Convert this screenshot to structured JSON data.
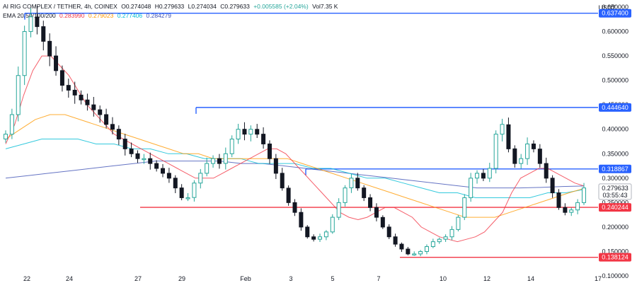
{
  "header": {
    "pair": "AI RIG COMPLEX / TETHER, 4h, COINEX",
    "open": "O0.274048",
    "high": "H0.279633",
    "low": "L0.274034",
    "close": "C0.279633",
    "change": "+0.005585 (+2.04%)",
    "volume": "Vol7.35 K",
    "ema_label": "EMA 20/50/100/200",
    "ema20": "0.283990",
    "ema50": "0.279023",
    "ema100": "0.277406",
    "ema200": "0.284279"
  },
  "colors": {
    "up": "#26a69a",
    "down": "#131722",
    "ema20": "#f23645",
    "ema50": "#ff9800",
    "ema100": "#00bcd4",
    "ema200": "#3f51b5",
    "resistance": "#2962ff",
    "support": "#f23645"
  },
  "chart_data": {
    "type": "candlestick",
    "unit": "USDT",
    "ylim": [
      0.1,
      0.65
    ],
    "y_ticks": [
      "0.100000",
      "0.150000",
      "0.200000",
      "0.250000",
      "0.300000",
      "0.350000",
      "0.400000",
      "0.450000",
      "0.500000",
      "0.550000",
      "0.600000",
      "0.650000"
    ],
    "x_ticks": [
      "22",
      "24",
      "27",
      "29",
      "Feb",
      "3",
      "5",
      "7",
      "10",
      "12",
      "14",
      "17"
    ],
    "last_price": "0.279633",
    "countdown": "03:55:43",
    "levels": [
      {
        "value": 0.6374,
        "label": "0.637400",
        "kind": "resistance"
      },
      {
        "value": 0.44464,
        "label": "0.444640",
        "kind": "resistance"
      },
      {
        "value": 0.318867,
        "label": "0.318867",
        "kind": "resistance"
      },
      {
        "value": 0.240244,
        "label": "0.240244",
        "kind": "support"
      },
      {
        "value": 0.138124,
        "label": "0.138124",
        "kind": "support"
      }
    ],
    "close_path": [
      0.39,
      0.43,
      0.51,
      0.6,
      0.63,
      0.61,
      0.58,
      0.55,
      0.52,
      0.49,
      0.48,
      0.47,
      0.46,
      0.45,
      0.44,
      0.43,
      0.41,
      0.4,
      0.38,
      0.36,
      0.35,
      0.34,
      0.34,
      0.33,
      0.32,
      0.31,
      0.3,
      0.28,
      0.26,
      0.26,
      0.29,
      0.31,
      0.33,
      0.34,
      0.33,
      0.35,
      0.38,
      0.4,
      0.39,
      0.4,
      0.39,
      0.37,
      0.34,
      0.31,
      0.28,
      0.25,
      0.23,
      0.2,
      0.18,
      0.175,
      0.18,
      0.19,
      0.22,
      0.25,
      0.28,
      0.3,
      0.28,
      0.26,
      0.24,
      0.22,
      0.2,
      0.18,
      0.165,
      0.155,
      0.145,
      0.145,
      0.15,
      0.16,
      0.17,
      0.175,
      0.18,
      0.195,
      0.22,
      0.26,
      0.3,
      0.31,
      0.3,
      0.32,
      0.39,
      0.41,
      0.36,
      0.33,
      0.34,
      0.37,
      0.36,
      0.33,
      0.3,
      0.27,
      0.24,
      0.23,
      0.235,
      0.25,
      0.28
    ],
    "ema20": [
      0.37,
      0.41,
      0.47,
      0.52,
      0.55,
      0.55,
      0.53,
      0.51,
      0.48,
      0.45,
      0.43,
      0.41,
      0.39,
      0.38,
      0.37,
      0.36,
      0.35,
      0.34,
      0.33,
      0.32,
      0.31,
      0.3,
      0.3,
      0.3,
      0.31,
      0.32,
      0.33,
      0.34,
      0.35,
      0.36,
      0.36,
      0.35,
      0.33,
      0.31,
      0.29,
      0.27,
      0.25,
      0.23,
      0.22,
      0.215,
      0.22,
      0.23,
      0.24,
      0.24,
      0.23,
      0.22,
      0.2,
      0.19,
      0.18,
      0.175,
      0.17,
      0.175,
      0.18,
      0.19,
      0.21,
      0.23,
      0.27,
      0.3,
      0.31,
      0.32,
      0.32,
      0.31,
      0.3,
      0.29,
      0.284
    ],
    "ema50": [
      0.38,
      0.4,
      0.42,
      0.43,
      0.43,
      0.42,
      0.41,
      0.4,
      0.39,
      0.38,
      0.37,
      0.36,
      0.35,
      0.35,
      0.34,
      0.34,
      0.34,
      0.34,
      0.34,
      0.34,
      0.33,
      0.32,
      0.31,
      0.3,
      0.29,
      0.28,
      0.27,
      0.26,
      0.25,
      0.24,
      0.23,
      0.22,
      0.22,
      0.22,
      0.23,
      0.24,
      0.25,
      0.26,
      0.27,
      0.279
    ],
    "ema100": [
      0.36,
      0.37,
      0.38,
      0.38,
      0.38,
      0.37,
      0.37,
      0.36,
      0.36,
      0.35,
      0.35,
      0.34,
      0.34,
      0.34,
      0.33,
      0.33,
      0.33,
      0.32,
      0.32,
      0.31,
      0.3,
      0.3,
      0.29,
      0.28,
      0.27,
      0.27,
      0.26,
      0.26,
      0.26,
      0.26,
      0.27,
      0.27,
      0.277
    ],
    "ema200": [
      0.3,
      0.305,
      0.31,
      0.315,
      0.32,
      0.325,
      0.33,
      0.335,
      0.335,
      0.335,
      0.335,
      0.33,
      0.33,
      0.325,
      0.32,
      0.315,
      0.31,
      0.305,
      0.3,
      0.295,
      0.29,
      0.285,
      0.28,
      0.28,
      0.28,
      0.281,
      0.283,
      0.284
    ]
  }
}
